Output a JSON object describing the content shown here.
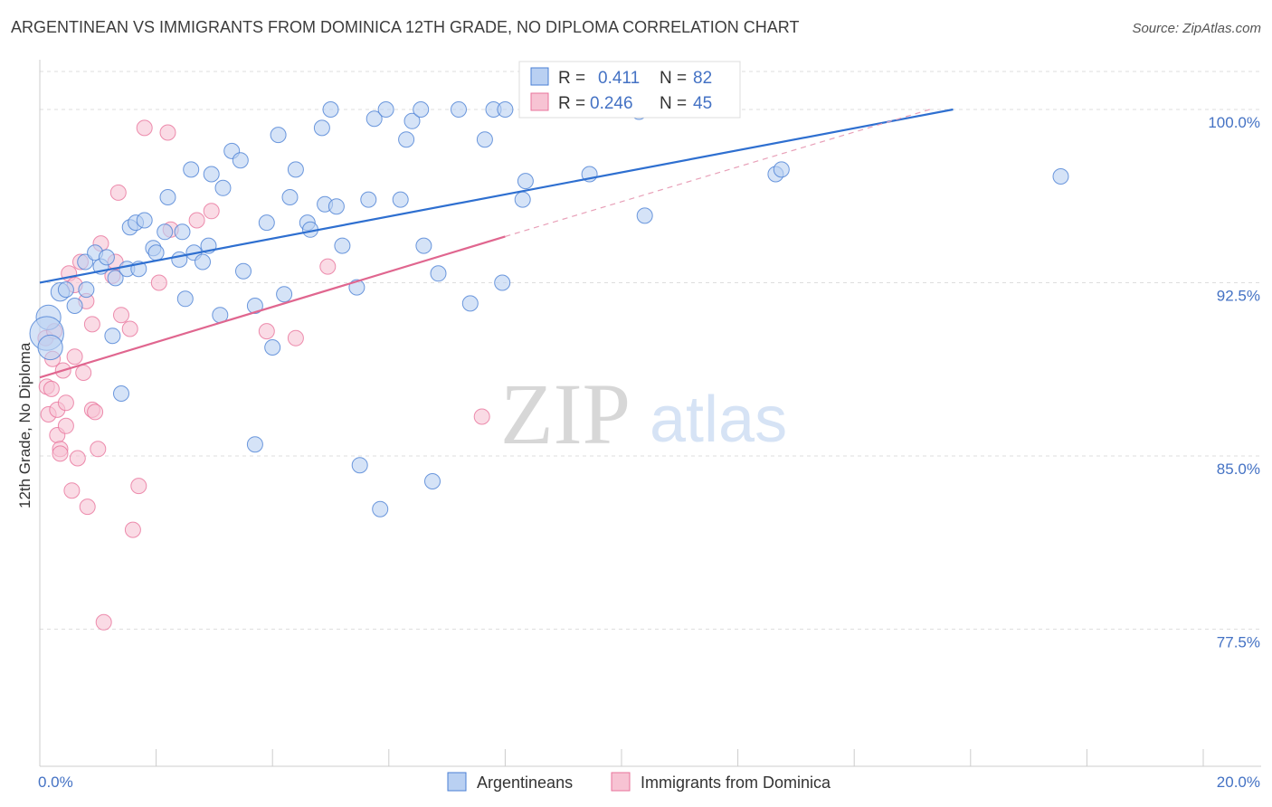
{
  "title": "ARGENTINEAN VS IMMIGRANTS FROM DOMINICA 12TH GRADE, NO DIPLOMA CORRELATION CHART",
  "source": "Source: ZipAtlas.com",
  "watermark": {
    "zip": "ZIP",
    "atlas": "atlas"
  },
  "colors": {
    "blue": "#4a7fd4",
    "blue_fill": "#b9d0f2",
    "pink": "#e8739b",
    "pink_fill": "#f7c3d3",
    "tick": "#4472c4",
    "grid": "#dddddd"
  },
  "chart_data": {
    "type": "scatter",
    "title": "ARGENTINEAN VS IMMIGRANTS FROM DOMINICA 12TH GRADE, NO DIPLOMA CORRELATION CHART",
    "xlabel": "",
    "ylabel": "12th Grade, No Diploma",
    "xlim": [
      0,
      20
    ],
    "ylim": [
      71.5,
      101.0
    ],
    "x_tick_labels": [
      "0.0%",
      "20.0%"
    ],
    "y_ticks": [
      77.5,
      85.0,
      92.5,
      100.0
    ],
    "y_tick_labels": [
      "77.5%",
      "85.0%",
      "92.5%",
      "100.0%"
    ],
    "stats": [
      {
        "r_label": "R =",
        "r_value": "0.411",
        "n_label": "N =",
        "n_value": "82"
      },
      {
        "r_label": "R =",
        "r_value": "0.246",
        "n_label": "N =",
        "n_value": "45"
      }
    ],
    "series": [
      {
        "name": "Argentineans",
        "trend": {
          "x0": 0.0,
          "y0": 92.5,
          "x1": 15.7,
          "y1": 100.0
        },
        "points": [
          [
            0.15,
            91.0,
            1.6
          ],
          [
            0.12,
            90.3,
            2.2
          ],
          [
            0.18,
            89.7,
            1.6
          ],
          [
            0.35,
            92.1,
            1.2
          ],
          [
            0.45,
            92.2,
            1.0
          ],
          [
            0.6,
            91.5,
            1.0
          ],
          [
            0.8,
            92.2,
            1.0
          ],
          [
            0.78,
            93.4,
            1.0
          ],
          [
            0.95,
            93.8,
            1.0
          ],
          [
            1.05,
            93.2,
            1.0
          ],
          [
            1.15,
            93.6,
            1.0
          ],
          [
            1.3,
            92.7,
            1.0
          ],
          [
            1.25,
            90.2,
            1.0
          ],
          [
            1.4,
            87.7,
            1.0
          ],
          [
            1.5,
            93.1,
            1.0
          ],
          [
            1.7,
            93.1,
            1.0
          ],
          [
            1.55,
            94.9,
            1.0
          ],
          [
            1.65,
            95.1,
            1.0
          ],
          [
            1.8,
            95.2,
            1.0
          ],
          [
            1.95,
            94.0,
            1.0
          ],
          [
            2.0,
            93.8,
            1.0
          ],
          [
            2.15,
            94.7,
            1.0
          ],
          [
            2.2,
            96.2,
            1.0
          ],
          [
            2.4,
            93.5,
            1.0
          ],
          [
            2.45,
            94.7,
            1.0
          ],
          [
            2.5,
            91.8,
            1.0
          ],
          [
            2.6,
            97.4,
            1.0
          ],
          [
            2.65,
            93.8,
            1.0
          ],
          [
            2.8,
            93.4,
            1.0
          ],
          [
            2.9,
            94.1,
            1.0
          ],
          [
            2.95,
            97.2,
            1.0
          ],
          [
            3.15,
            96.6,
            1.0
          ],
          [
            3.1,
            91.1,
            1.0
          ],
          [
            3.3,
            98.2,
            1.0
          ],
          [
            3.45,
            97.8,
            1.0
          ],
          [
            3.5,
            93.0,
            1.0
          ],
          [
            3.7,
            91.5,
            1.0
          ],
          [
            3.9,
            95.1,
            1.0
          ],
          [
            3.7,
            85.5,
            1.0
          ],
          [
            4.1,
            98.9,
            1.0
          ],
          [
            4.0,
            89.7,
            1.0
          ],
          [
            4.2,
            92.0,
            1.0
          ],
          [
            4.3,
            96.2,
            1.0
          ],
          [
            4.4,
            97.4,
            1.0
          ],
          [
            4.6,
            95.1,
            1.0
          ],
          [
            4.65,
            94.8,
            1.0
          ],
          [
            4.85,
            99.2,
            1.0
          ],
          [
            4.9,
            95.9,
            1.0
          ],
          [
            5.0,
            100.0,
            1.0
          ],
          [
            5.1,
            95.8,
            1.0
          ],
          [
            5.2,
            94.1,
            1.0
          ],
          [
            5.45,
            92.3,
            1.0
          ],
          [
            5.5,
            84.6,
            1.0
          ],
          [
            5.65,
            96.1,
            1.0
          ],
          [
            5.75,
            99.6,
            1.0
          ],
          [
            5.85,
            82.7,
            1.0
          ],
          [
            5.95,
            100.0,
            1.0
          ],
          [
            6.2,
            96.1,
            1.0
          ],
          [
            6.3,
            98.7,
            1.0
          ],
          [
            6.4,
            99.5,
            1.0
          ],
          [
            6.55,
            100.0,
            1.0
          ],
          [
            6.6,
            94.1,
            1.0
          ],
          [
            6.75,
            83.9,
            1.0
          ],
          [
            6.85,
            92.9,
            1.0
          ],
          [
            7.2,
            100.0,
            1.0
          ],
          [
            7.4,
            91.6,
            1.0
          ],
          [
            7.65,
            98.7,
            1.0
          ],
          [
            7.8,
            100.0,
            1.0
          ],
          [
            8.0,
            100.0,
            1.0
          ],
          [
            7.95,
            92.5,
            1.0
          ],
          [
            8.35,
            96.9,
            1.0
          ],
          [
            8.3,
            96.1,
            1.0
          ],
          [
            8.55,
            100.0,
            1.0
          ],
          [
            8.9,
            100.0,
            1.0
          ],
          [
            9.45,
            97.2,
            1.0
          ],
          [
            9.8,
            100.0,
            1.0
          ],
          [
            10.0,
            100.0,
            1.0
          ],
          [
            10.3,
            99.9,
            1.0
          ],
          [
            10.4,
            95.4,
            1.0
          ],
          [
            12.65,
            97.2,
            1.0
          ],
          [
            12.75,
            97.4,
            1.0
          ],
          [
            17.55,
            97.1,
            1.0
          ]
        ]
      },
      {
        "name": "Immigrants from Dominica",
        "trend": {
          "x0": 0.0,
          "y0": 88.4,
          "x1": 8.0,
          "y1": 94.5
        },
        "trend_ext": {
          "x0": 8.0,
          "y0": 94.5,
          "x1": 15.3,
          "y1": 100.0
        },
        "points": [
          [
            0.1,
            90.1,
            1.0
          ],
          [
            0.12,
            88.0,
            1.0
          ],
          [
            0.15,
            86.8,
            1.0
          ],
          [
            0.2,
            87.9,
            1.0
          ],
          [
            0.25,
            90.4,
            1.0
          ],
          [
            0.22,
            89.2,
            1.0
          ],
          [
            0.3,
            85.9,
            1.0
          ],
          [
            0.3,
            87.0,
            1.0
          ],
          [
            0.35,
            85.3,
            1.0
          ],
          [
            0.35,
            85.1,
            1.0
          ],
          [
            0.4,
            88.7,
            1.0
          ],
          [
            0.45,
            87.3,
            1.0
          ],
          [
            0.45,
            86.3,
            1.0
          ],
          [
            0.5,
            92.9,
            1.0
          ],
          [
            0.55,
            83.5,
            1.0
          ],
          [
            0.6,
            89.3,
            1.0
          ],
          [
            0.6,
            92.4,
            1.0
          ],
          [
            0.65,
            84.9,
            1.0
          ],
          [
            0.7,
            93.4,
            1.0
          ],
          [
            0.75,
            88.6,
            1.0
          ],
          [
            0.8,
            91.7,
            1.0
          ],
          [
            0.82,
            82.8,
            1.0
          ],
          [
            0.9,
            87.0,
            1.0
          ],
          [
            0.9,
            90.7,
            1.0
          ],
          [
            0.95,
            86.9,
            1.0
          ],
          [
            1.0,
            85.3,
            1.0
          ],
          [
            1.05,
            94.2,
            1.0
          ],
          [
            1.1,
            77.8,
            1.0
          ],
          [
            1.25,
            92.8,
            1.0
          ],
          [
            1.3,
            93.4,
            1.0
          ],
          [
            1.35,
            96.4,
            1.0
          ],
          [
            1.4,
            91.1,
            1.0
          ],
          [
            1.55,
            90.5,
            1.0
          ],
          [
            1.6,
            81.8,
            1.0
          ],
          [
            1.7,
            83.7,
            1.0
          ],
          [
            1.8,
            99.2,
            1.0
          ],
          [
            2.05,
            92.5,
            1.0
          ],
          [
            2.2,
            99.0,
            1.0
          ],
          [
            2.25,
            94.8,
            1.0
          ],
          [
            2.7,
            95.2,
            1.0
          ],
          [
            2.95,
            95.6,
            1.0
          ],
          [
            3.9,
            90.4,
            1.0
          ],
          [
            4.4,
            90.1,
            1.0
          ],
          [
            4.95,
            93.2,
            1.0
          ],
          [
            7.6,
            86.7,
            1.0
          ]
        ]
      }
    ]
  },
  "legend": [
    {
      "label": "Argentineans"
    },
    {
      "label": "Immigrants from Dominica"
    }
  ]
}
